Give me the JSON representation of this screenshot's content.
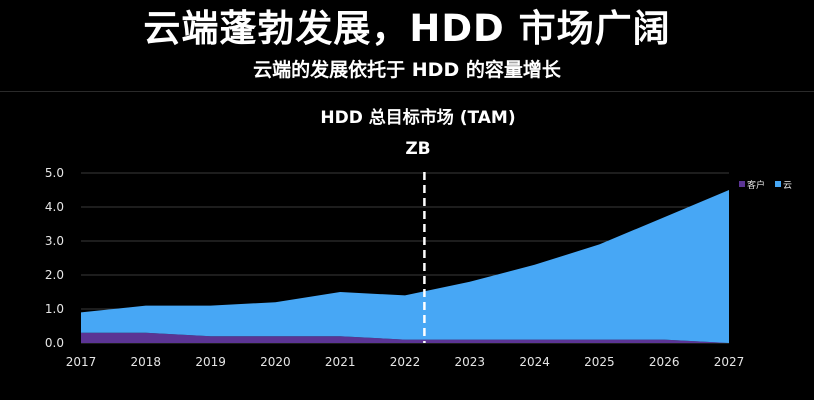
{
  "header": {
    "title": "云端蓬勃发展，HDD 市场广阔",
    "subtitle": "云端的发展依托于 HDD 的容量增长"
  },
  "chart_data": {
    "type": "area",
    "stacked": true,
    "title": "HDD 总目标市场 (TAM)",
    "unit": "ZB",
    "x": [
      "2017",
      "2018",
      "2019",
      "2020",
      "2021",
      "2022",
      "2023",
      "2024",
      "2025",
      "2026",
      "2027"
    ],
    "ylim": [
      0,
      5
    ],
    "yticks": [
      "0.0",
      "1.0",
      "2.0",
      "3.0",
      "4.0",
      "5.0"
    ],
    "grid": true,
    "legend_position": "top-right",
    "divider_after": "2022",
    "series": [
      {
        "name": "客户",
        "color": "#5b3494",
        "values": [
          0.3,
          0.3,
          0.2,
          0.2,
          0.2,
          0.1,
          0.1,
          0.1,
          0.1,
          0.1,
          0.0
        ]
      },
      {
        "name": "云",
        "color": "#47a7f5",
        "values": [
          0.6,
          0.8,
          0.9,
          1.0,
          1.3,
          1.3,
          1.7,
          2.2,
          2.8,
          3.6,
          4.5
        ]
      }
    ]
  }
}
